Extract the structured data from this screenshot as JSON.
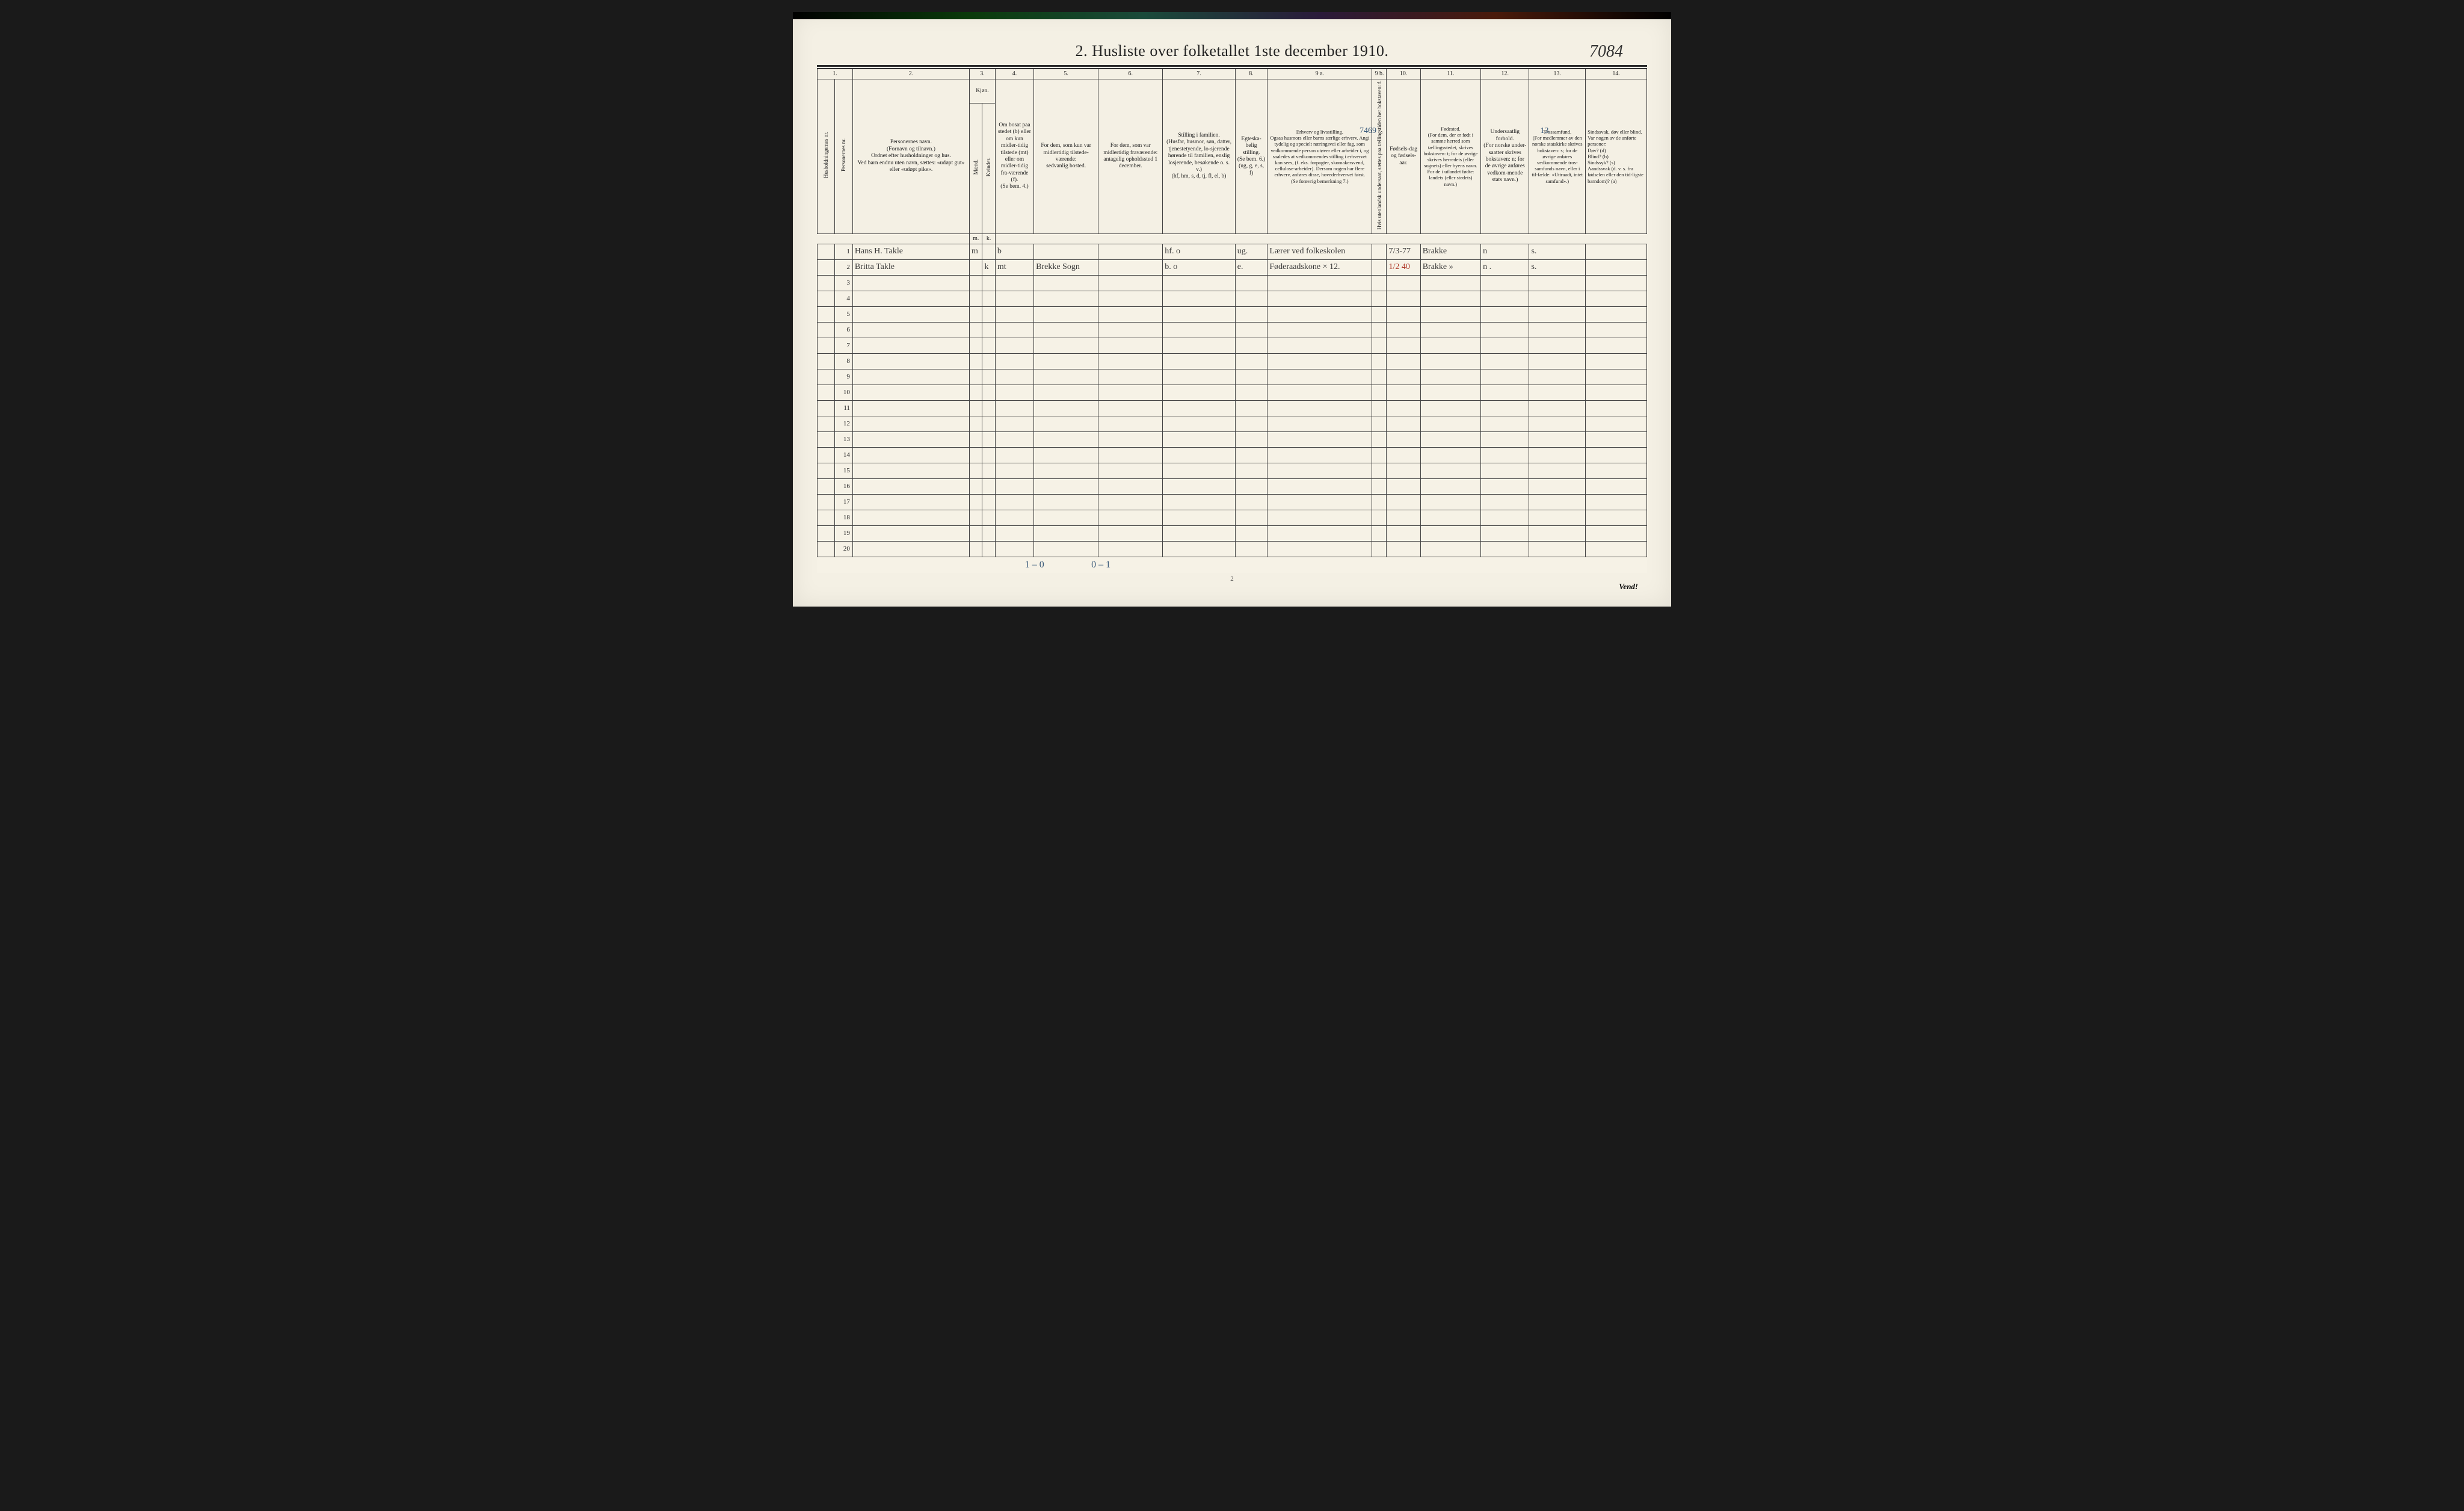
{
  "document": {
    "title": "2.  Husliste over folketallet 1ste december 1910.",
    "page_identifier": "7084",
    "page_number": "2",
    "turn_label": "Vend!"
  },
  "margin_notes": {
    "note_7469": "7469",
    "note_13": "13."
  },
  "columns": {
    "numbers": [
      "1.",
      "",
      "2.",
      "3.",
      "",
      "4.",
      "5.",
      "6.",
      "7.",
      "8.",
      "9 a.",
      "9 b.",
      "10.",
      "11.",
      "12.",
      "13.",
      "14."
    ],
    "kjon_header": "Kjøn.",
    "kjon_sub": {
      "m": "Mænd.",
      "k": "Kvinder."
    },
    "kjon_abbrev": {
      "m": "m.",
      "k": "k."
    },
    "headers": {
      "c1": "Husholdningernes nr.",
      "c1b": "Personernes nr.",
      "c2": "Personernes navn.\n(Fornavn og tilnavn.)\nOrdnet efter husholdninger og hus.\nVed barn endnu uten navn, sættes: «udøpt gut» eller «udøpt pike».",
      "c4": "Om bosat paa stedet (b) eller om kun midler-tidig tilstede (mt) eller om midler-tidig fra-værende (f).\n(Se bem. 4.)",
      "c5": "For dem, som kun var midlertidig tilstede-værende:\nsedvanlig bosted.",
      "c6": "For dem, som var midlertidig fraværende:\nantagelig opholdssted 1 december.",
      "c7": "Stilling i familien.\n(Husfar, husmor, søn, datter, tjenestetyende, lo-sjerende hørende til familien, enslig losjerende, besøkende o. s. v.)\n(hf, hm, s, d, tj, fl, el, b)",
      "c8": "Egteska-belig stilling.\n(Se bem. 6.)\n(ug, g, e, s, f)",
      "c9a": "Erhverv og livsstilling.\nOgsaa husmors eller barns særlige erhverv. Angi tydelig og specielt næringsvei eller fag, som vedkommende person utøver eller arbeider i, og saaledes at vedkommendes stilling i erhvervet kan sees, (f. eks. forpagter, skomakersvend, cellulose-arbeider). Dersom nogen har flere erhverv, anføres disse, hovederhvervet først.\n(Se forøvrig bemerkning 7.)",
      "c9b": "Hvis utenlandsk undersaat, sættes paa tællingstiden her bokstaven: f.",
      "c10": "Fødsels-dag og fødsels-aar.",
      "c11": "Fødested.\n(For dem, der er født i samme herred som tællingsstedet, skrives bokstaven: t; for de øvrige skrives herredets (eller sognets) eller byens navn. For de i utlandet fødte: landets (eller stedets) navn.)",
      "c12": "Undersaatlig forhold.\n(For norske under-saatter skrives bokstaven: n; for de øvrige anføres vedkom-mende stats navn.)",
      "c13": "Trossamfund.\n(For medlemmer av den norske statskirke skrives bokstaven: s; for de øvrige anføres vedkommende tros-samfunds navn, eller i til-fælde: «Uttraadt, intet samfund».)",
      "c14": "Sindssvak, døv eller blind.\nVar nogen av de anførte personer:\nDøv?        (d)\nBlind?       (b)\nSindssyk?  (s)\nAandssvak (d. v. s. fra fødselen eller den tid-ligste barndom)?  (a)"
    }
  },
  "col_widths": {
    "c1": "2.2%",
    "c1b": "2.2%",
    "c2": "14.5%",
    "c3m": "1.6%",
    "c3k": "1.6%",
    "c4": "4.8%",
    "c5": "8%",
    "c6": "8%",
    "c7": "9%",
    "c8": "4%",
    "c9a": "13%",
    "c9b": "1.8%",
    "c10": "4.2%",
    "c11": "7.5%",
    "c12": "6%",
    "c13": "7%",
    "c14": "7.6%"
  },
  "rows": [
    {
      "num": "1",
      "name": "Hans H. Takle",
      "m": "m",
      "k": "",
      "bosat": "b",
      "c5": "",
      "c6": "",
      "c7": "hf.        o",
      "c8": "ug.",
      "c9a": "Lærer ved folkeskolen",
      "c9b": "",
      "c10": "7/3-77",
      "c11": "Brakke",
      "c12": "n",
      "c13": "s.",
      "c14": ""
    },
    {
      "num": "2",
      "name": "Britta  Takle",
      "m": "",
      "k": "k",
      "bosat": "mt",
      "c5": "Brekke Sogn",
      "c6": "",
      "c7": "b.        o",
      "c8": "e.",
      "c9a": "Føderaadskone × 12.",
      "c9b": "",
      "c10": "1/2 40",
      "c11": "Brakke  »",
      "c12": "n .",
      "c13": "s.",
      "c14": ""
    },
    {
      "num": "3"
    },
    {
      "num": "4"
    },
    {
      "num": "5"
    },
    {
      "num": "6"
    },
    {
      "num": "7"
    },
    {
      "num": "8"
    },
    {
      "num": "9"
    },
    {
      "num": "10"
    },
    {
      "num": "11"
    },
    {
      "num": "12"
    },
    {
      "num": "13"
    },
    {
      "num": "14"
    },
    {
      "num": "15"
    },
    {
      "num": "16"
    },
    {
      "num": "17"
    },
    {
      "num": "18"
    },
    {
      "num": "19"
    },
    {
      "num": "20"
    }
  ],
  "footer_tallies": {
    "col4": "1 – 0",
    "col5": "0 – 1"
  },
  "colors": {
    "paper": "#f4f0e4",
    "ink": "#2a2a2a",
    "handwriting": "#3a3a3a",
    "red_ink": "#b03a2a",
    "blue_ink": "#3a5a7a",
    "border": "#444"
  }
}
